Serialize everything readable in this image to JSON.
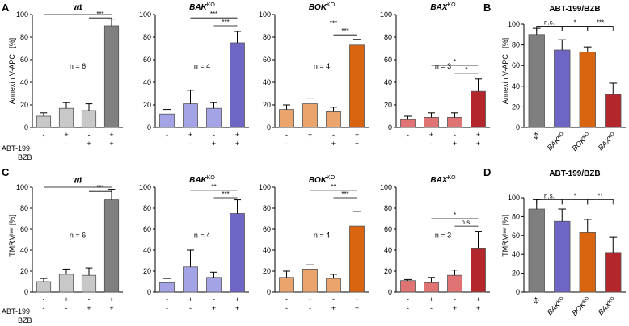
{
  "rows": [
    {
      "panel_letter": "A",
      "ylabel": "Annexin V-APC⁺ [%]",
      "summary_letter": "B",
      "summary_title": "ABT-199/BZB"
    },
    {
      "panel_letter": "C",
      "ylabel": "TMRMˡᵒʷ [%]",
      "summary_letter": "D",
      "summary_title": "ABT-199/BZB"
    }
  ],
  "treatment_labels": {
    "abt": "ABT-199",
    "bzb": "BZB"
  },
  "treatment_signs": {
    "abt": [
      "-",
      "+",
      "-",
      "+"
    ],
    "bzb": [
      "-",
      "-",
      "+",
      "+"
    ]
  },
  "colors": {
    "wt": [
      "#c8c8c8",
      "#c8c8c8",
      "#c8c8c8",
      "#808080"
    ],
    "bak": [
      "#a3a3e6",
      "#a3a3e6",
      "#a3a3e6",
      "#6e66c4"
    ],
    "bok": [
      "#eaa46c",
      "#eaa46c",
      "#eaa46c",
      "#d8640f"
    ],
    "bax": [
      "#e07474",
      "#e07474",
      "#e07474",
      "#b3262c"
    ],
    "summary": [
      "#7f7f7f",
      "#6e66c4",
      "#d8640f",
      "#b3262c"
    ]
  },
  "chart_data": [
    {
      "type": "bar",
      "id": "A-wt",
      "title": "wt",
      "title_sup": "",
      "ylim": [
        0,
        100
      ],
      "yticks": [
        "0",
        "20",
        "40",
        "60",
        "80",
        "100"
      ],
      "categories": [
        "untreated",
        "ABT-199",
        "BZB",
        "ABT-199+BZB"
      ],
      "values": [
        10,
        17,
        15,
        90
      ],
      "errors": [
        3,
        5,
        6,
        6
      ],
      "n": "n = 6",
      "sig": [
        {
          "from": 0,
          "to": 3,
          "y": 100,
          "label": "***"
        },
        {
          "from": 2,
          "to": 3,
          "y": 97,
          "label": "***"
        }
      ]
    },
    {
      "type": "bar",
      "id": "A-bak",
      "title": "BAK",
      "title_sup": "KO",
      "ylim": [
        0,
        100
      ],
      "yticks": [
        "0",
        "20",
        "40",
        "60",
        "80",
        "100"
      ],
      "categories": [
        "untreated",
        "ABT-199",
        "BZB",
        "ABT-199+BZB"
      ],
      "values": [
        12,
        21,
        17,
        75
      ],
      "errors": [
        4,
        12,
        5,
        10
      ],
      "n": "n = 4",
      "sig": [
        {
          "from": 1,
          "to": 3,
          "y": 97,
          "label": "***"
        },
        {
          "from": 2,
          "to": 3,
          "y": 90,
          "label": "***"
        }
      ]
    },
    {
      "type": "bar",
      "id": "A-bok",
      "title": "BOK",
      "title_sup": "KO",
      "ylim": [
        0,
        100
      ],
      "yticks": [
        "0",
        "20",
        "40",
        "60",
        "80",
        "100"
      ],
      "categories": [
        "untreated",
        "ABT-199",
        "BZB",
        "ABT-199+BZB"
      ],
      "values": [
        16,
        21,
        14,
        73
      ],
      "errors": [
        4,
        5,
        4,
        5
      ],
      "n": "n = 4",
      "sig": [
        {
          "from": 1,
          "to": 3,
          "y": 89,
          "label": "***"
        },
        {
          "from": 2,
          "to": 3,
          "y": 82,
          "label": "***"
        }
      ]
    },
    {
      "type": "bar",
      "id": "A-bax",
      "title": "BAX",
      "title_sup": "KO",
      "ylim": [
        0,
        100
      ],
      "yticks": [
        "0",
        "20",
        "40",
        "60",
        "80",
        "100"
      ],
      "categories": [
        "untreated",
        "ABT-199",
        "BZB",
        "ABT-199+BZB"
      ],
      "values": [
        7,
        9,
        9,
        32
      ],
      "errors": [
        3,
        4,
        4,
        11
      ],
      "n": "n = 3",
      "sig": [
        {
          "from": 1,
          "to": 3,
          "y": 55,
          "label": "*"
        },
        {
          "from": 2,
          "to": 3,
          "y": 48,
          "label": "*"
        }
      ]
    },
    {
      "type": "bar",
      "id": "B",
      "title": "ABT-199/BZB",
      "title_sup": "",
      "ylim": [
        0,
        100
      ],
      "yticks": [
        "0",
        "20",
        "40",
        "60",
        "80",
        "100"
      ],
      "categories": [
        "Ø",
        "BAK",
        "BOK",
        "BAX"
      ],
      "category_sup": [
        "",
        "KO",
        "KO",
        "KO"
      ],
      "values": [
        90,
        75,
        73,
        32
      ],
      "errors": [
        6,
        10,
        5,
        11
      ],
      "sig": [
        {
          "from": 0,
          "to": 1,
          "y": 98,
          "label": "n.s."
        },
        {
          "from": 1,
          "to": 2,
          "y": 98,
          "label": "*"
        },
        {
          "from": 2,
          "to": 3,
          "y": 98,
          "label": "***"
        }
      ]
    },
    {
      "type": "bar",
      "id": "C-wt",
      "title": "wt",
      "title_sup": "",
      "ylim": [
        0,
        100
      ],
      "yticks": [
        "0",
        "20",
        "40",
        "60",
        "80",
        "100"
      ],
      "categories": [
        "untreated",
        "ABT-199",
        "BZB",
        "ABT-199+BZB"
      ],
      "values": [
        10,
        17,
        16,
        88
      ],
      "errors": [
        3,
        5,
        7,
        10
      ],
      "n": "n = 6",
      "sig": [
        {
          "from": 0,
          "to": 3,
          "y": 100,
          "label": "***"
        },
        {
          "from": 2,
          "to": 3,
          "y": 96,
          "label": "***"
        }
      ]
    },
    {
      "type": "bar",
      "id": "C-bak",
      "title": "BAK",
      "title_sup": "KO",
      "ylim": [
        0,
        100
      ],
      "yticks": [
        "0",
        "20",
        "40",
        "60",
        "80",
        "100"
      ],
      "categories": [
        "untreated",
        "ABT-199",
        "BZB",
        "ABT-199+BZB"
      ],
      "values": [
        9,
        24,
        14,
        75
      ],
      "errors": [
        4,
        16,
        5,
        13
      ],
      "n": "n = 4",
      "sig": [
        {
          "from": 1,
          "to": 3,
          "y": 97,
          "label": "**"
        },
        {
          "from": 2,
          "to": 3,
          "y": 90,
          "label": "***"
        }
      ]
    },
    {
      "type": "bar",
      "id": "C-bok",
      "title": "BOK",
      "title_sup": "KO",
      "ylim": [
        0,
        100
      ],
      "yticks": [
        "0",
        "20",
        "40",
        "60",
        "80",
        "100"
      ],
      "categories": [
        "untreated",
        "ABT-199",
        "BZB",
        "ABT-199+BZB"
      ],
      "values": [
        14,
        22,
        13,
        63
      ],
      "errors": [
        6,
        4,
        4,
        14
      ],
      "n": "n = 4",
      "sig": [
        {
          "from": 1,
          "to": 3,
          "y": 97,
          "label": "**"
        },
        {
          "from": 2,
          "to": 3,
          "y": 90,
          "label": "***"
        }
      ]
    },
    {
      "type": "bar",
      "id": "C-bax",
      "title": "BAX",
      "title_sup": "KO",
      "ylim": [
        0,
        100
      ],
      "yticks": [
        "0",
        "20",
        "40",
        "60",
        "80",
        "100"
      ],
      "categories": [
        "untreated",
        "ABT-199",
        "BZB",
        "ABT-199+BZB"
      ],
      "values": [
        11,
        9,
        16,
        42
      ],
      "errors": [
        1,
        5,
        5,
        16
      ],
      "n": "n = 3",
      "sig": [
        {
          "from": 1,
          "to": 3,
          "y": 70,
          "label": "*"
        },
        {
          "from": 2,
          "to": 3,
          "y": 63,
          "label": "n.s."
        }
      ]
    },
    {
      "type": "bar",
      "id": "D",
      "title": "ABT-199/BZB",
      "title_sup": "",
      "ylim": [
        0,
        100
      ],
      "yticks": [
        "0",
        "20",
        "40",
        "60",
        "80",
        "100"
      ],
      "categories": [
        "Ø",
        "BAK",
        "BOK",
        "BAX"
      ],
      "category_sup": [
        "",
        "KO",
        "KO",
        "KO"
      ],
      "values": [
        88,
        75,
        63,
        42
      ],
      "errors": [
        10,
        13,
        14,
        16
      ],
      "sig": [
        {
          "from": 0,
          "to": 1,
          "y": 98,
          "label": "n.s."
        },
        {
          "from": 1,
          "to": 2,
          "y": 98,
          "label": "*"
        },
        {
          "from": 2,
          "to": 3,
          "y": 98,
          "label": "**"
        }
      ]
    }
  ]
}
